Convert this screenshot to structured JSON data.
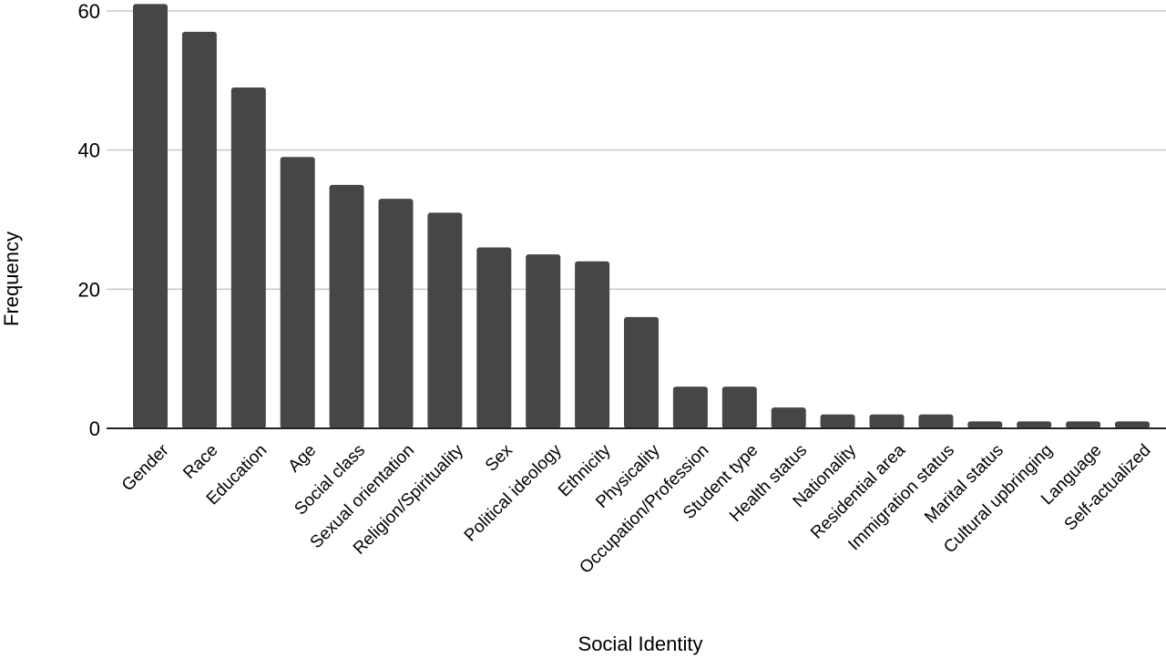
{
  "chart_data": {
    "type": "bar",
    "title": "",
    "xlabel": "Social Identity",
    "ylabel": "Frequency",
    "ylim": [
      0,
      60
    ],
    "yticks": [
      0,
      20,
      40,
      60
    ],
    "grid": true,
    "bar_color": "#454747",
    "categories": [
      "Gender",
      "Race",
      "Education",
      "Age",
      "Social class",
      "Sexual orientation",
      "Religion/Spirituality",
      "Sex",
      "Political ideology",
      "Ethnicity",
      "Physicality",
      "Occupation/Profession",
      "Student type",
      "Health status",
      "Nationality",
      "Residential area",
      "Immigration status",
      "Marital status",
      "Cultural upbringing",
      "Language",
      "Self-actualized"
    ],
    "values": [
      61,
      57,
      49,
      39,
      35,
      33,
      31,
      26,
      25,
      24,
      16,
      6,
      6,
      3,
      2,
      2,
      2,
      1,
      1,
      1,
      1
    ]
  }
}
